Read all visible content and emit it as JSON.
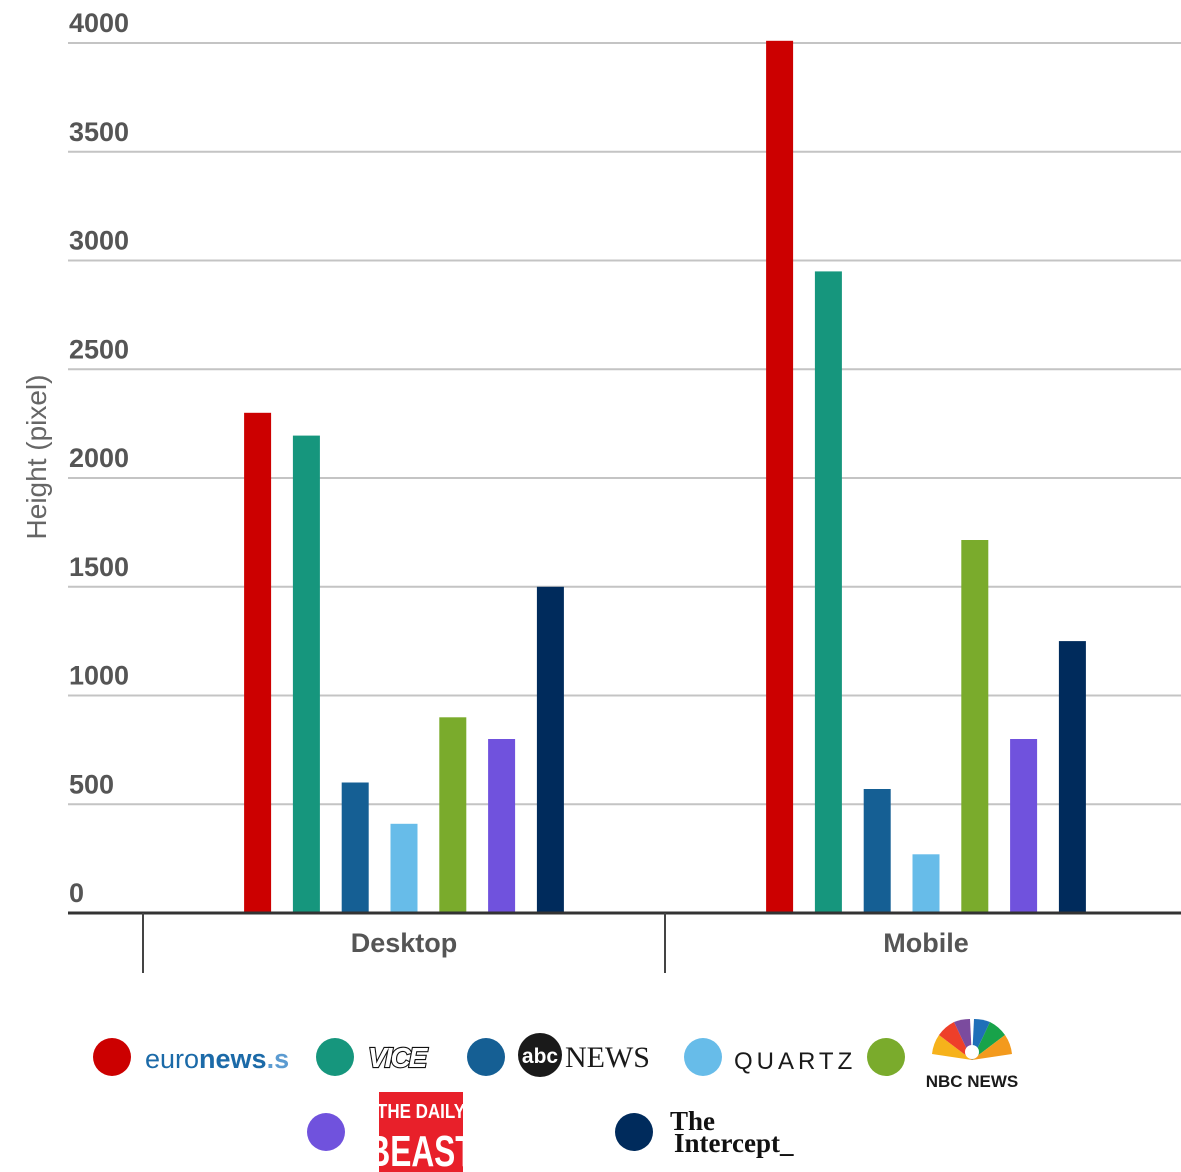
{
  "chart_data": {
    "type": "bar",
    "title": "",
    "xlabel": "",
    "ylabel": "Height (pixel)",
    "ylim": [
      0,
      4000
    ],
    "yticks": [
      0,
      500,
      1000,
      1500,
      2000,
      2500,
      3000,
      3500,
      4000
    ],
    "categories": [
      "Desktop",
      "Mobile"
    ],
    "grid": true,
    "legend_position": "bottom",
    "series": [
      {
        "name": "euronews.",
        "color": "#cc0000",
        "values": [
          2300,
          4010
        ]
      },
      {
        "name": "VICE",
        "color": "#16967d",
        "values": [
          2195,
          2950
        ]
      },
      {
        "name": "abc NEWS",
        "color": "#155f94",
        "values": [
          600,
          570
        ]
      },
      {
        "name": "QUARTZ",
        "color": "#67bce9",
        "values": [
          410,
          270
        ]
      },
      {
        "name": "NBC NEWS",
        "color": "#7aab2c",
        "values": [
          900,
          1715
        ]
      },
      {
        "name": "THE DAILY BEAST",
        "color": "#7052dd",
        "values": [
          800,
          800
        ]
      },
      {
        "name": "The Intercept_",
        "color": "#002b5c",
        "values": [
          1500,
          1250
        ]
      }
    ]
  },
  "legend": {
    "euronews": {
      "text_a": "euro",
      "text_b": "news",
      "text_c": ".s"
    },
    "vice": {
      "text": "VICE"
    },
    "abc": {
      "badge": "abc",
      "text": "NEWS"
    },
    "quartz": {
      "text": "QUARTZ"
    },
    "nbc": {
      "text": "NBC NEWS"
    },
    "dailybeast": {
      "line1": "THE DAILY",
      "line2": "BEAST"
    },
    "intercept": {
      "line1": "The",
      "line2": "Intercept_"
    }
  }
}
